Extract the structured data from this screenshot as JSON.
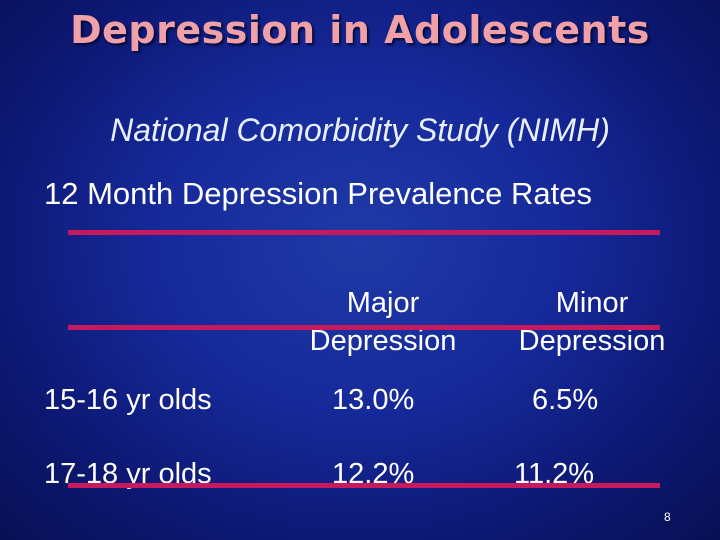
{
  "slide": {
    "title": "Depression in Adolescents",
    "subtitle": "National Comorbidity Study (NIMH)",
    "heading": "12 Month Depression Prevalence Rates",
    "page_number": "8"
  },
  "table": {
    "columns": [
      {
        "line1": "Major",
        "line2": "Depression"
      },
      {
        "line1": "Minor",
        "line2": "Depression"
      }
    ],
    "rows": [
      {
        "label": "15-16 yr olds",
        "major": "13.0%",
        "minor": "6.5%"
      },
      {
        "label": "17-18 yr olds",
        "major": "12.2%",
        "minor": "11.2%"
      }
    ]
  },
  "colors": {
    "title": "#f0a0a6",
    "rule": "#c8185e",
    "background": "#16299a"
  }
}
